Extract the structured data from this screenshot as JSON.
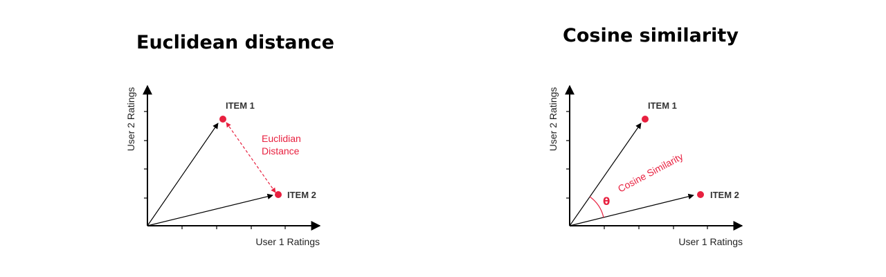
{
  "colors": {
    "accent": "#e8203f",
    "axis": "#000000",
    "text": "#222222"
  },
  "euclidean": {
    "title": "Euclidean distance",
    "y_axis_label": "User 2 Ratings",
    "x_axis_label": "User 1 Ratings",
    "item1_label": "ITEM 1",
    "item2_label": "ITEM 2",
    "annotation_line1": "Euclidian",
    "annotation_line2": "Distance"
  },
  "cosine": {
    "title": "Cosine similarity",
    "y_axis_label": "User 2 Ratings",
    "x_axis_label": "User 1 Ratings",
    "item1_label": "ITEM 1",
    "item2_label": "ITEM 2",
    "annotation": "Cosine Similarity",
    "angle_symbol": "θ"
  }
}
